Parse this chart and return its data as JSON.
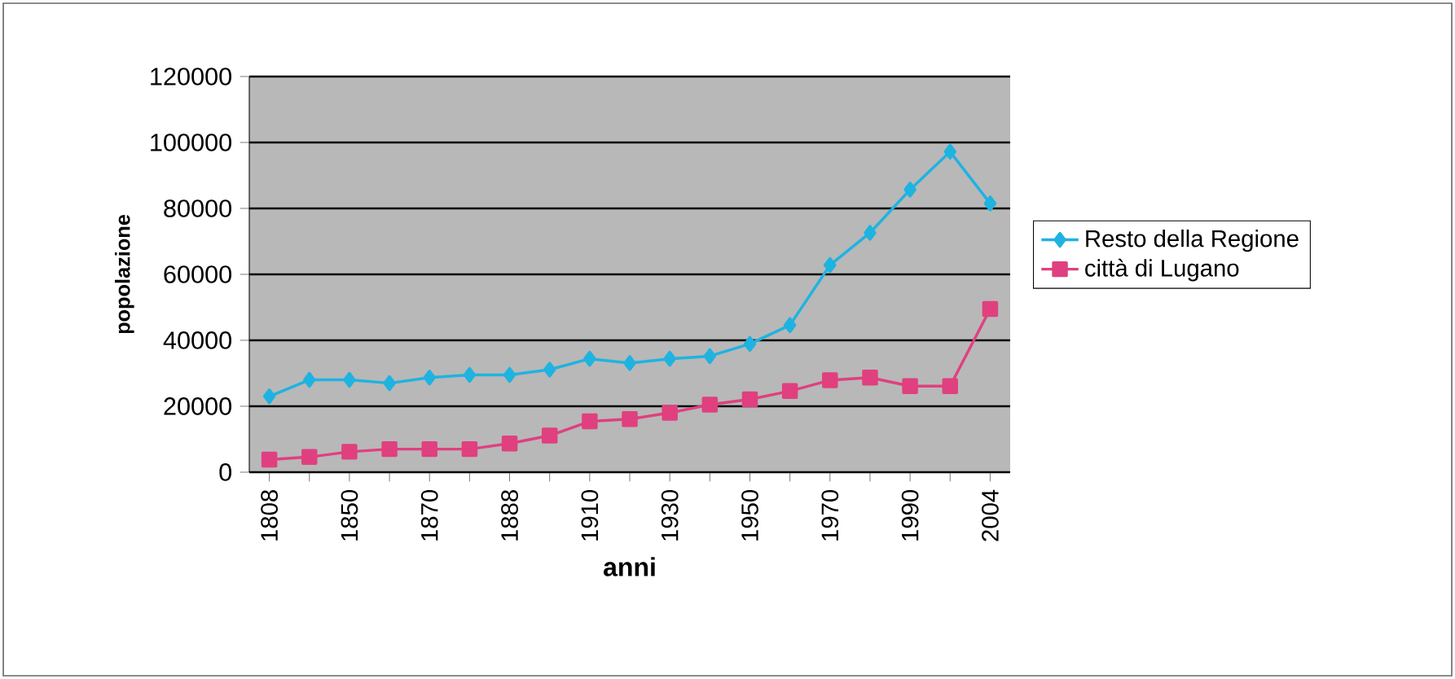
{
  "chart_data": {
    "type": "line",
    "xlabel": "anni",
    "ylabel": "popolazione",
    "categories": [
      "1808",
      null,
      "1850",
      null,
      "1870",
      null,
      "1888",
      null,
      "1910",
      null,
      "1930",
      null,
      "1950",
      null,
      "1970",
      null,
      "1990",
      null,
      "2004"
    ],
    "series": [
      {
        "name": "Resto della Regione",
        "color": "#1fb3e0",
        "marker": "diamond",
        "values": [
          23000,
          28000,
          28000,
          27000,
          28700,
          29500,
          29500,
          31100,
          34400,
          33100,
          34400,
          35200,
          38900,
          44600,
          62800,
          72600,
          85700,
          97200,
          81500
        ]
      },
      {
        "name": "città di Lugano",
        "color": "#e0407f",
        "marker": "square",
        "values": [
          3800,
          4600,
          6200,
          7000,
          7000,
          7000,
          8700,
          11100,
          15400,
          16100,
          18000,
          20500,
          22100,
          24600,
          27900,
          28700,
          26100,
          26100,
          49500
        ]
      }
    ],
    "ylim": [
      0,
      120000
    ],
    "yticks": [
      0,
      20000,
      40000,
      60000,
      80000,
      100000,
      120000
    ],
    "grid": "y",
    "legend": "right"
  }
}
